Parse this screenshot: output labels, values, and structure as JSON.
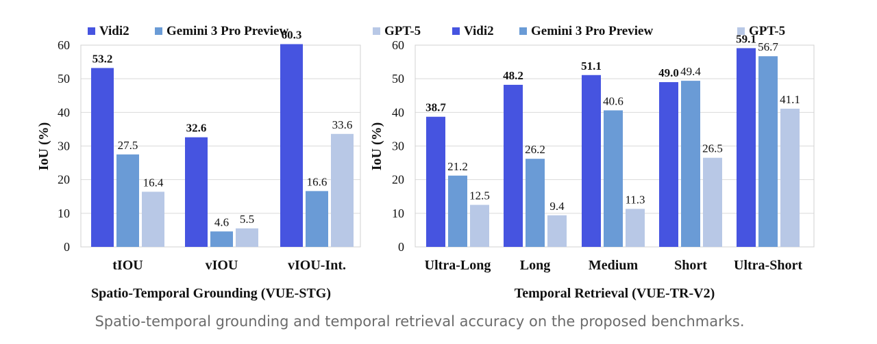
{
  "chart_data": [
    {
      "type": "bar",
      "categories": [
        "tIOU",
        "vIOU",
        "vIOU-Int."
      ],
      "series": [
        {
          "name": "Vidi2",
          "values": [
            53.2,
            32.6,
            60.3
          ],
          "labels": [
            "53.2",
            "32.6",
            "60.3"
          ],
          "color": "#4654e0",
          "bold_labels": true
        },
        {
          "name": "Gemini 3 Pro Preview",
          "values": [
            27.5,
            4.6,
            16.6
          ],
          "labels": [
            "27.5",
            "4.6",
            "16.6"
          ],
          "color": "#6a9bd6",
          "bold_labels": false
        },
        {
          "name": "GPT-5",
          "values": [
            16.4,
            5.5,
            33.6
          ],
          "labels": [
            "16.4",
            "5.5",
            "33.6"
          ],
          "color": "#b8c8e6",
          "bold_labels": false
        }
      ],
      "ylabel": "IoU (%)",
      "xlabel": "Spatio-Temporal Grounding (VUE-STG)",
      "ylim": [
        0,
        60
      ],
      "yticks": [
        0,
        10,
        20,
        30,
        40,
        50,
        60
      ],
      "grid": true,
      "legend": "top"
    },
    {
      "type": "bar",
      "categories": [
        "Ultra-Long",
        "Long",
        "Medium",
        "Short",
        "Ultra-Short"
      ],
      "series": [
        {
          "name": "Vidi2",
          "values": [
            38.7,
            48.2,
            51.1,
            49.0,
            59.1
          ],
          "labels": [
            "38.7",
            "48.2",
            "51.1",
            "49.0",
            "59.1"
          ],
          "color": "#4654e0",
          "bold_labels": true
        },
        {
          "name": "Gemini 3 Pro Preview",
          "values": [
            21.2,
            26.2,
            40.6,
            49.4,
            56.7
          ],
          "labels": [
            "21.2",
            "26.2",
            "40.6",
            "49.4",
            "56.7"
          ],
          "color": "#6a9bd6",
          "bold_labels": false
        },
        {
          "name": "GPT-5",
          "values": [
            12.5,
            9.4,
            11.3,
            26.5,
            41.1
          ],
          "labels": [
            "12.5",
            "9.4",
            "11.3",
            "26.5",
            "41.1"
          ],
          "color": "#b8c8e6",
          "bold_labels": false
        }
      ],
      "ylabel": "IoU (%)",
      "xlabel": "Temporal Retrieval (VUE-TR-V2)",
      "ylim": [
        0,
        60
      ],
      "yticks": [
        0,
        10,
        20,
        30,
        40,
        50,
        60
      ],
      "grid": true,
      "legend": "top"
    }
  ],
  "caption": "Spatio-temporal grounding and temporal retrieval accuracy on the proposed benchmarks."
}
